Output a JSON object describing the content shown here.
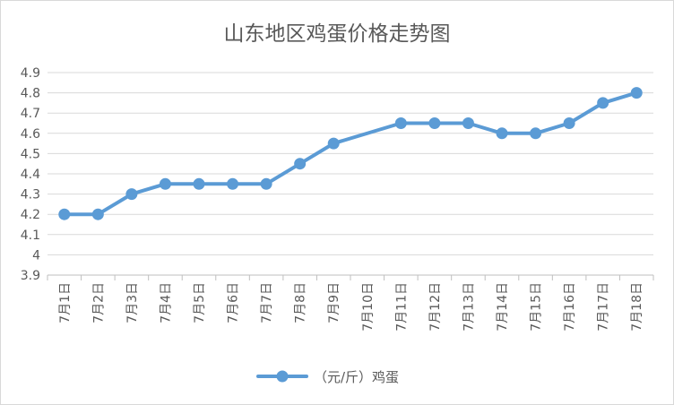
{
  "chart_data": {
    "type": "line",
    "title": "山东地区鸡蛋价格走势图",
    "xlabel": "",
    "ylabel": "",
    "categories": [
      "7月1日",
      "7月2日",
      "7月3日",
      "7月4日",
      "7月5日",
      "7月6日",
      "7月7日",
      "7月8日",
      "7月9日",
      "7月10日",
      "7月11日",
      "7月12日",
      "7月13日",
      "7月14日",
      "7月15日",
      "7月16日",
      "7月17日",
      "7月18日"
    ],
    "series": [
      {
        "name": "（元/斤）鸡蛋",
        "values": [
          4.2,
          4.2,
          4.3,
          4.35,
          4.35,
          4.35,
          4.35,
          4.45,
          4.55,
          null,
          4.65,
          4.65,
          4.65,
          4.6,
          4.6,
          4.65,
          4.75,
          4.8
        ],
        "color": "#5b9bd5"
      }
    ],
    "ylim": [
      3.9,
      4.9
    ],
    "yticks": [
      "3.9",
      "4",
      "4.1",
      "4.2",
      "4.3",
      "4.4",
      "4.5",
      "4.6",
      "4.7",
      "4.8",
      "4.9"
    ],
    "grid": true,
    "legend": "bottom"
  }
}
